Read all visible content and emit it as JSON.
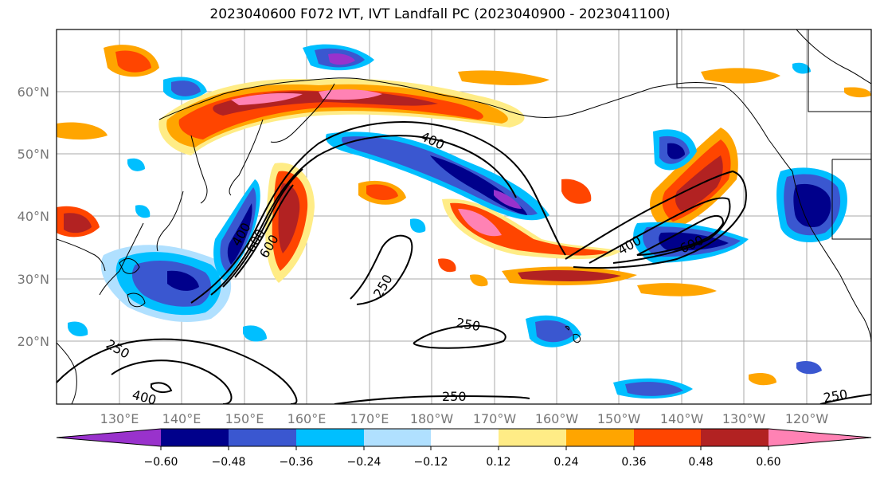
{
  "title": "2023040600 F072 IVT, IVT Landfall PC (2023040900 - 2023041100)",
  "lat_labels": [
    "60°N",
    "50°N",
    "40°N",
    "30°N",
    "20°N"
  ],
  "lon_labels": [
    "130°E",
    "140°E",
    "150°E",
    "160°E",
    "170°E",
    "180°W",
    "170°W",
    "160°W",
    "150°W",
    "140°W",
    "130°W",
    "120°W"
  ],
  "colorbar": {
    "colors": [
      "#9932cc",
      "#00008b",
      "#3a57d0",
      "#00bfff",
      "#b0e0ff",
      "#ffffff",
      "#ffec86",
      "#ffa500",
      "#ff4500",
      "#b22222",
      "#ff82b4"
    ],
    "tick_labels": [
      "−0.60",
      "−0.48",
      "−0.36",
      "−0.24",
      "−0.12",
      "0.12",
      "0.24",
      "0.36",
      "0.48",
      "0.60"
    ]
  },
  "contour_labels": [
    "400",
    "600",
    "250",
    "250",
    "250",
    "250",
    "400",
    "400",
    "600",
    "600",
    "250",
    "400"
  ]
}
